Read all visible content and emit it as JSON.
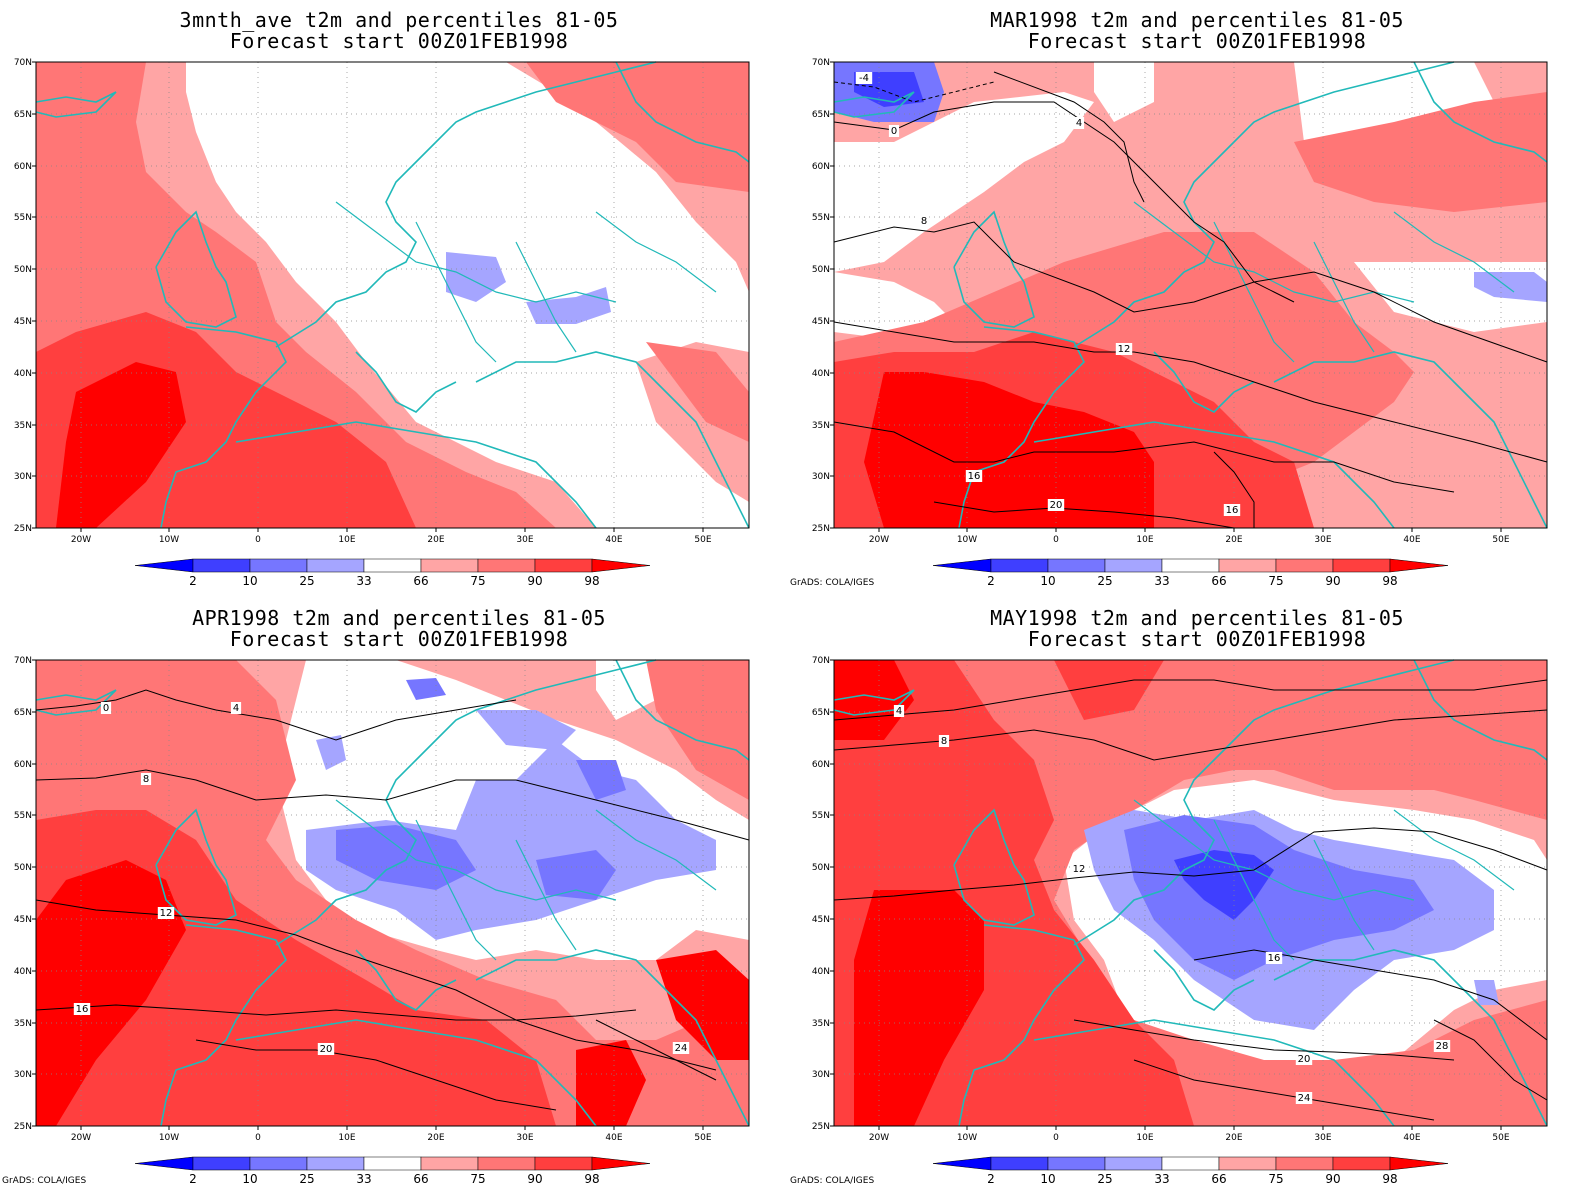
{
  "credit_label": "GrADS: COLA/IGES",
  "colorbar": {
    "labels": [
      "2",
      "10",
      "25",
      "33",
      "66",
      "75",
      "90",
      "98"
    ],
    "colors": {
      "lt2": "#0000ff",
      "2_10": "#3f3fff",
      "10_25": "#7676ff",
      "25_33": "#a5a5ff",
      "33_66": "#ffffff",
      "66_75": "#ffa5a5",
      "75_90": "#ff7676",
      "90_98": "#ff3f3f",
      "gt98": "#ff0000"
    }
  },
  "colors": {
    "coastline": "#21b9b9",
    "contour": "#000000"
  },
  "axes": {
    "lat_labels": [
      "70N",
      "65N",
      "60N",
      "55N",
      "50N",
      "45N",
      "40N",
      "35N",
      "30N",
      "25N"
    ],
    "lon_labels": [
      "20W",
      "10W",
      "0",
      "10E",
      "20E",
      "30E",
      "40E",
      "50E"
    ]
  },
  "panels": [
    {
      "title_line1": "3mnth_ave t2m and percentiles 81-05",
      "title_line2": "Forecast start 00Z01FEB1998",
      "show_credit": false,
      "contours": []
    },
    {
      "title_line1": "MAR1998 t2m and percentiles 81-05",
      "title_line2": "Forecast start 00Z01FEB1998",
      "show_credit": true,
      "contours": [
        {
          "label": "-4"
        },
        {
          "label": "0"
        },
        {
          "label": "4"
        },
        {
          "label": "8"
        },
        {
          "label": "12"
        },
        {
          "label": "16"
        },
        {
          "label": "20"
        },
        {
          "label": "16"
        }
      ]
    },
    {
      "title_line1": "APR1998 t2m and percentiles 81-05",
      "title_line2": "Forecast start 00Z01FEB1998",
      "show_credit": true,
      "contours": [
        {
          "label": "0"
        },
        {
          "label": "4"
        },
        {
          "label": "8"
        },
        {
          "label": "12"
        },
        {
          "label": "16"
        },
        {
          "label": "20"
        },
        {
          "label": "24"
        }
      ]
    },
    {
      "title_line1": "MAY1998 t2m and percentiles 81-05",
      "title_line2": "Forecast start 00Z01FEB1998",
      "show_credit": true,
      "contours": [
        {
          "label": "4"
        },
        {
          "label": "8"
        },
        {
          "label": "12"
        },
        {
          "label": "16"
        },
        {
          "label": "20"
        },
        {
          "label": "24"
        },
        {
          "label": "28"
        }
      ]
    }
  ]
}
